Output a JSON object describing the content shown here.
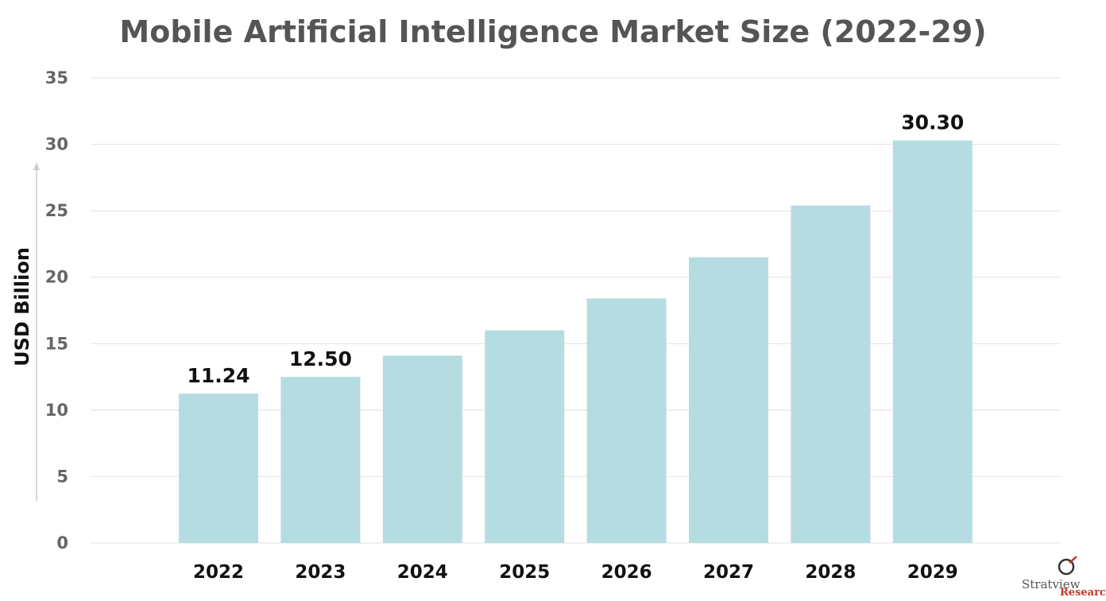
{
  "chart_data": {
    "type": "bar",
    "title": "Mobile Artificial Intelligence Market Size (2022-29)",
    "ylabel": "USD Billion",
    "xlabel": "",
    "categories": [
      "2022",
      "2023",
      "2024",
      "2025",
      "2026",
      "2027",
      "2028",
      "2029"
    ],
    "values": [
      11.24,
      12.5,
      14.1,
      16.0,
      18.4,
      21.5,
      25.4,
      30.3
    ],
    "data_labels": [
      "11.24",
      "12.50",
      "",
      "",
      "",
      "",
      "",
      "30.30"
    ],
    "ylim": [
      0,
      35
    ],
    "yticks": [
      0,
      5,
      10,
      15,
      20,
      25,
      30,
      35
    ],
    "grid": true,
    "legend": "none",
    "bar_color": "#b5dde1",
    "grid_color": "#e6e6e6"
  },
  "logo": {
    "brand_line1": "Stratview",
    "brand_line2": "Research"
  }
}
